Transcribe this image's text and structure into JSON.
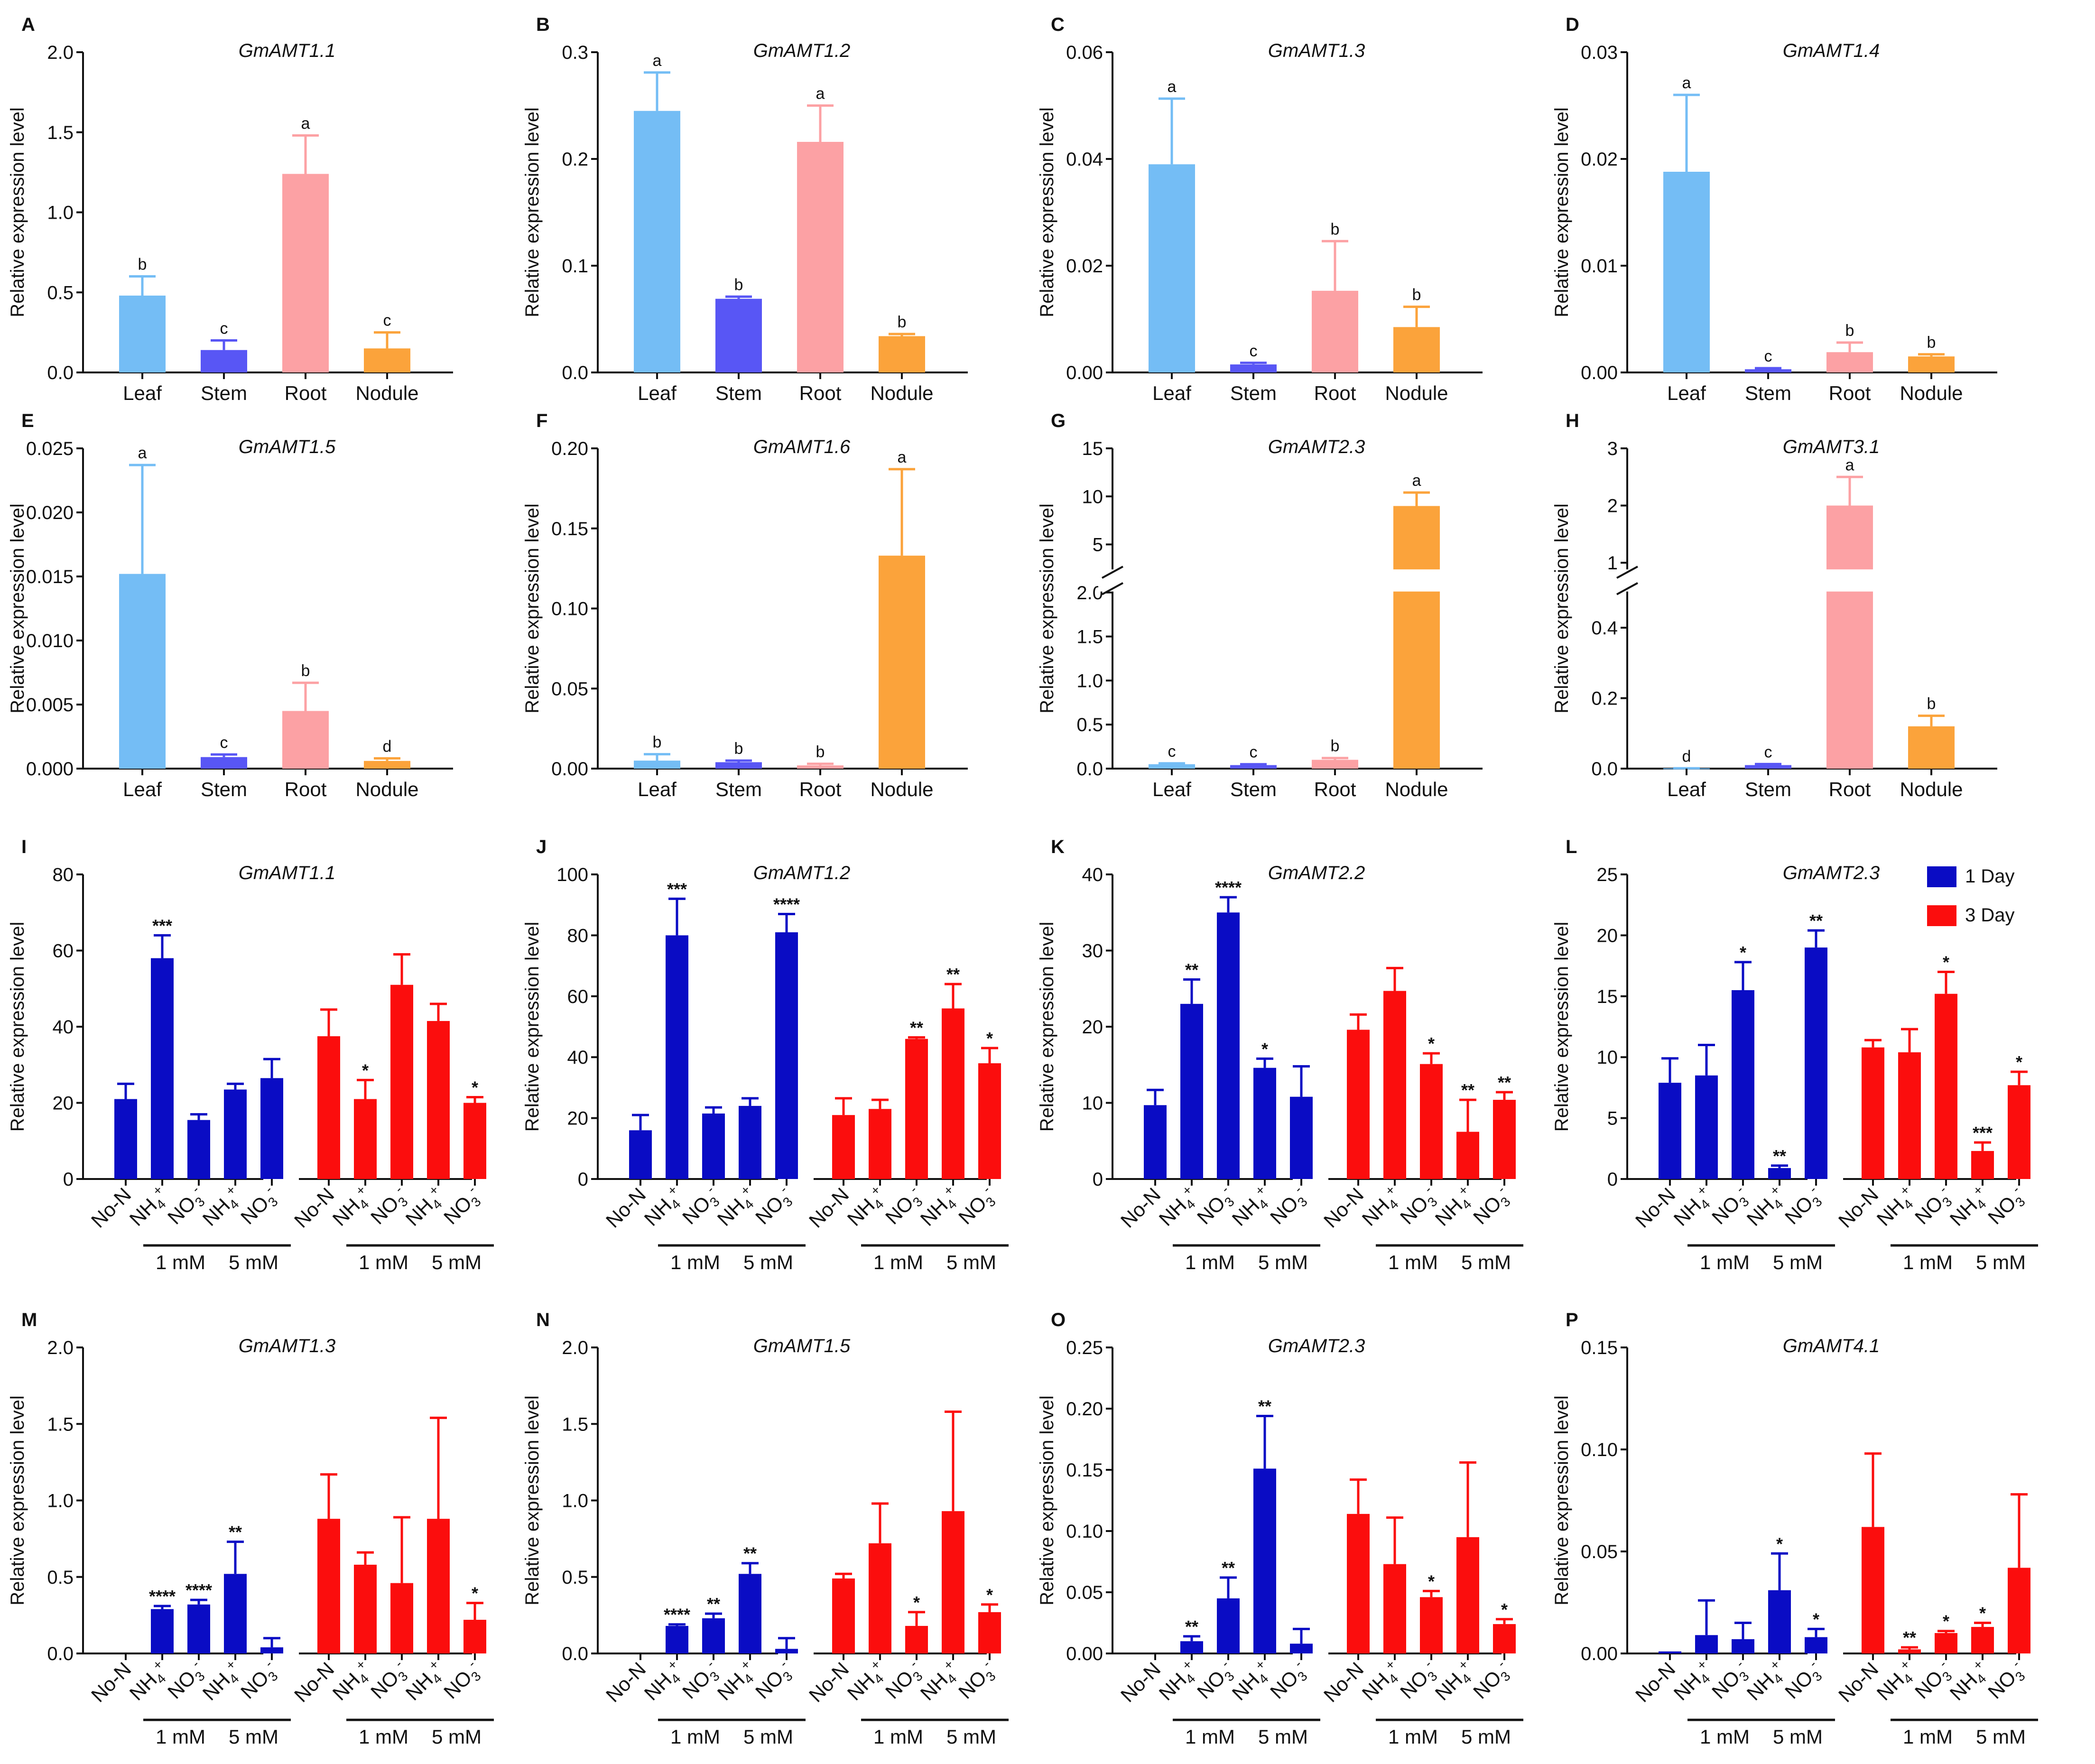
{
  "ylabel": "Relative expression level",
  "colors": {
    "Leaf": "#74bdf5",
    "Stem": "#5856f5",
    "Root": "#fca1a4",
    "Nodule": "#fba33b",
    "1 Day": "#0a0cc4",
    "3 Day": "#fb0d0d"
  },
  "legend": [
    "1 Day",
    "3 Day"
  ],
  "treatments": [
    "No-N",
    "NH4+",
    "NO3-",
    "NH4+",
    "NO3-"
  ],
  "concentrations": [
    "1 mM",
    "5 mM"
  ],
  "chart_data": [
    {
      "letter": "A",
      "title": "GmAMT1.1",
      "type": "bar",
      "categories": [
        "Leaf",
        "Stem",
        "Root",
        "Nodule"
      ],
      "values": [
        0.48,
        0.14,
        1.24,
        0.15
      ],
      "errors": [
        0.12,
        0.06,
        0.24,
        0.1
      ],
      "labels": [
        "b",
        "c",
        "a",
        "c"
      ],
      "ylim": [
        0,
        2.0
      ],
      "yticks": [
        "0.0",
        "0.5",
        "1.0",
        "1.5",
        "2.0"
      ]
    },
    {
      "letter": "B",
      "title": "GmAMT1.2",
      "type": "bar",
      "categories": [
        "Leaf",
        "Stem",
        "Root",
        "Nodule"
      ],
      "values": [
        0.245,
        0.069,
        0.216,
        0.034
      ],
      "errors": [
        0.036,
        0.002,
        0.034,
        0.002
      ],
      "labels": [
        "a",
        "b",
        "a",
        "b"
      ],
      "ylim": [
        0,
        0.3
      ],
      "yticks": [
        "0.0",
        "0.1",
        "0.2",
        "0.3"
      ]
    },
    {
      "letter": "C",
      "title": "GmAMT1.3",
      "type": "bar",
      "categories": [
        "Leaf",
        "Stem",
        "Root",
        "Nodule"
      ],
      "values": [
        0.039,
        0.0015,
        0.0153,
        0.0085
      ],
      "errors": [
        0.0123,
        0.0003,
        0.0093,
        0.0038
      ],
      "labels": [
        "a",
        "c",
        "b",
        "b"
      ],
      "ylim": [
        0,
        0.06
      ],
      "yticks": [
        "0.00",
        "0.02",
        "0.04",
        "0.06"
      ]
    },
    {
      "letter": "D",
      "title": "GmAMT1.4",
      "type": "bar",
      "categories": [
        "Leaf",
        "Stem",
        "Root",
        "Nodule"
      ],
      "values": [
        0.0188,
        0.0003,
        0.0019,
        0.0015
      ],
      "errors": [
        0.0072,
        0.0001,
        0.0009,
        0.0002
      ],
      "labels": [
        "a",
        "c",
        "b",
        "b"
      ],
      "ylim": [
        0,
        0.03
      ],
      "yticks": [
        "0.00",
        "0.01",
        "0.02",
        "0.03"
      ]
    },
    {
      "letter": "E",
      "title": "GmAMT1.5",
      "type": "bar",
      "categories": [
        "Leaf",
        "Stem",
        "Root",
        "Nodule"
      ],
      "values": [
        0.0152,
        0.0009,
        0.0045,
        0.0006
      ],
      "errors": [
        0.0085,
        0.0002,
        0.0022,
        0.0002
      ],
      "labels": [
        "a",
        "c",
        "b",
        "d"
      ],
      "ylim": [
        0,
        0.025
      ],
      "yticks": [
        "0.000",
        "0.005",
        "0.010",
        "0.015",
        "0.020",
        "0.025"
      ]
    },
    {
      "letter": "F",
      "title": "GmAMT1.6",
      "type": "bar",
      "categories": [
        "Leaf",
        "Stem",
        "Root",
        "Nodule"
      ],
      "values": [
        0.005,
        0.004,
        0.002,
        0.133
      ],
      "errors": [
        0.004,
        0.001,
        0.001,
        0.054
      ],
      "labels": [
        "b",
        "b",
        "b",
        "a"
      ],
      "ylim": [
        0,
        0.2
      ],
      "yticks": [
        "0.00",
        "0.05",
        "0.10",
        "0.15",
        "0.20"
      ]
    },
    {
      "letter": "G",
      "title": "GmAMT2.3",
      "type": "bar",
      "categories": [
        "Leaf",
        "Stem",
        "Root",
        "Nodule"
      ],
      "values": [
        0.05,
        0.04,
        0.1,
        9.0
      ],
      "errors": [
        0.01,
        0.01,
        0.02,
        1.4
      ],
      "labels": [
        "c",
        "c",
        "b",
        "a"
      ],
      "broken_axis": {
        "lower": [
          0,
          2
        ],
        "upper": [
          2.5,
          15
        ]
      },
      "yticks_lower": [
        "0.0",
        "0.5",
        "1.0",
        "1.5",
        "2.0"
      ],
      "yticks_upper": [
        "5",
        "10",
        "15"
      ]
    },
    {
      "letter": "H",
      "title": "GmAMT3.1",
      "type": "bar",
      "categories": [
        "Leaf",
        "Stem",
        "Root",
        "Nodule"
      ],
      "values": [
        0.001,
        0.01,
        2.0,
        0.12
      ],
      "errors": [
        0,
        0.003,
        0.5,
        0.03
      ],
      "labels": [
        "d",
        "c",
        "a",
        "b"
      ],
      "broken_axis": {
        "lower": [
          0,
          0.5
        ],
        "upper": [
          0.9,
          3
        ]
      },
      "yticks_lower": [
        "0.0",
        "0.2",
        "0.4"
      ],
      "yticks_upper": [
        "1",
        "2",
        "3"
      ]
    },
    {
      "letter": "I",
      "title": "GmAMT1.1",
      "type": "bar",
      "series": [
        {
          "name": "1 Day",
          "values": [
            21,
            58,
            15.5,
            23.5,
            26.5
          ],
          "errors": [
            4,
            6,
            1.5,
            1.5,
            5
          ],
          "sig": [
            "",
            "***",
            "",
            "",
            ""
          ]
        },
        {
          "name": "3 Day",
          "values": [
            37.5,
            21,
            51,
            41.5,
            20
          ],
          "errors": [
            7,
            5,
            8,
            4.5,
            1.5
          ],
          "sig": [
            "",
            "*",
            "",
            "",
            "*"
          ]
        }
      ],
      "ylim": [
        0,
        80
      ],
      "yticks": [
        "0",
        "20",
        "40",
        "60",
        "80"
      ]
    },
    {
      "letter": "J",
      "title": "GmAMT1.2",
      "type": "bar",
      "series": [
        {
          "name": "1 Day",
          "values": [
            16,
            80,
            21.5,
            24,
            81
          ],
          "errors": [
            5,
            12,
            2,
            2.5,
            6
          ],
          "sig": [
            "",
            "***",
            "",
            "",
            "****"
          ]
        },
        {
          "name": "3 Day",
          "values": [
            21,
            23,
            46,
            56,
            38
          ],
          "errors": [
            5.5,
            3,
            0.5,
            8,
            5
          ],
          "sig": [
            "",
            "",
            "**",
            "**",
            "*"
          ]
        }
      ],
      "ylim": [
        0,
        100
      ],
      "yticks": [
        "0",
        "20",
        "40",
        "60",
        "80",
        "100"
      ]
    },
    {
      "letter": "K",
      "title": "GmAMT2.2",
      "type": "bar",
      "series": [
        {
          "name": "1 Day",
          "values": [
            9.7,
            23,
            35,
            14.6,
            10.8
          ],
          "errors": [
            2,
            3.2,
            2,
            1.2,
            4
          ],
          "sig": [
            "",
            "**",
            "****",
            "*",
            ""
          ]
        },
        {
          "name": "3 Day",
          "values": [
            19.6,
            24.7,
            15.1,
            6.2,
            10.4
          ],
          "errors": [
            2,
            3,
            1.4,
            4.2,
            1
          ],
          "sig": [
            "",
            "",
            "*",
            "**",
            "**"
          ]
        }
      ],
      "ylim": [
        0,
        40
      ],
      "yticks": [
        "0",
        "10",
        "20",
        "30",
        "40"
      ]
    },
    {
      "letter": "L",
      "title": "GmAMT2.3",
      "type": "bar",
      "series": [
        {
          "name": "1 Day",
          "values": [
            7.9,
            8.5,
            15.5,
            0.9,
            19
          ],
          "errors": [
            2,
            2.5,
            2.3,
            0.2,
            1.4
          ],
          "sig": [
            "",
            "",
            "*",
            "**",
            "**"
          ]
        },
        {
          "name": "3 Day",
          "values": [
            10.8,
            10.4,
            15.2,
            2.3,
            7.7
          ],
          "errors": [
            0.6,
            1.9,
            1.8,
            0.7,
            1.1
          ],
          "sig": [
            "",
            "",
            "*",
            "***",
            "*"
          ]
        }
      ],
      "ylim": [
        0,
        25
      ],
      "yticks": [
        "0",
        "5",
        "10",
        "15",
        "20",
        "25"
      ],
      "legend": "top-right"
    },
    {
      "letter": "M",
      "title": "GmAMT1.3",
      "type": "bar",
      "series": [
        {
          "name": "1 Day",
          "values": [
            0,
            0.29,
            0.32,
            0.52,
            0.04
          ],
          "errors": [
            0,
            0.02,
            0.03,
            0.21,
            0.06
          ],
          "sig": [
            "",
            "****",
            "****",
            "**",
            ""
          ]
        },
        {
          "name": "3 Day",
          "values": [
            0.88,
            0.58,
            0.46,
            0.88,
            0.22
          ],
          "errors": [
            0.29,
            0.08,
            0.43,
            0.66,
            0.11
          ],
          "sig": [
            "",
            "",
            "",
            "",
            "*"
          ]
        }
      ],
      "ylim": [
        0,
        2.0
      ],
      "yticks": [
        "0.0",
        "0.5",
        "1.0",
        "1.5",
        "2.0"
      ]
    },
    {
      "letter": "N",
      "title": "GmAMT1.5",
      "type": "bar",
      "series": [
        {
          "name": "1 Day",
          "values": [
            0,
            0.18,
            0.23,
            0.52,
            0.03
          ],
          "errors": [
            0,
            0.01,
            0.03,
            0.07,
            0.07
          ],
          "sig": [
            "",
            "****",
            "**",
            "**",
            ""
          ]
        },
        {
          "name": "3 Day",
          "values": [
            0.49,
            0.72,
            0.18,
            0.93,
            0.27
          ],
          "errors": [
            0.03,
            0.26,
            0.09,
            0.65,
            0.05
          ],
          "sig": [
            "",
            "",
            "*",
            "",
            "*"
          ]
        }
      ],
      "ylim": [
        0,
        2.0
      ],
      "yticks": [
        "0.0",
        "0.5",
        "1.0",
        "1.5",
        "2.0"
      ]
    },
    {
      "letter": "O",
      "title": "GmAMT2.3",
      "type": "bar",
      "series": [
        {
          "name": "1 Day",
          "values": [
            0,
            0.01,
            0.045,
            0.151,
            0.008
          ],
          "errors": [
            0,
            0.004,
            0.017,
            0.043,
            0.012
          ],
          "sig": [
            "",
            "**",
            "**",
            "**",
            ""
          ]
        },
        {
          "name": "3 Day",
          "values": [
            0.114,
            0.073,
            0.046,
            0.095,
            0.024
          ],
          "errors": [
            0.028,
            0.038,
            0.005,
            0.061,
            0.004
          ],
          "sig": [
            "",
            "",
            "*",
            "",
            "*"
          ]
        }
      ],
      "ylim": [
        0,
        0.25
      ],
      "yticks": [
        "0.00",
        "0.05",
        "0.10",
        "0.15",
        "0.20",
        "0.25"
      ]
    },
    {
      "letter": "P",
      "title": "GmAMT4.1",
      "type": "bar",
      "series": [
        {
          "name": "1 Day",
          "values": [
            0.001,
            0.009,
            0.007,
            0.031,
            0.008
          ],
          "errors": [
            0,
            0.017,
            0.008,
            0.018,
            0.004
          ],
          "sig": [
            "",
            "",
            "",
            "*",
            "*"
          ]
        },
        {
          "name": "3 Day",
          "values": [
            0.062,
            0.002,
            0.01,
            0.013,
            0.042
          ],
          "errors": [
            0.036,
            0.001,
            0.001,
            0.002,
            0.036
          ],
          "sig": [
            "",
            "**",
            "*",
            "*",
            ""
          ]
        }
      ],
      "ylim": [
        0,
        0.15
      ],
      "yticks": [
        "0.00",
        "0.05",
        "0.10",
        "0.15"
      ]
    }
  ]
}
